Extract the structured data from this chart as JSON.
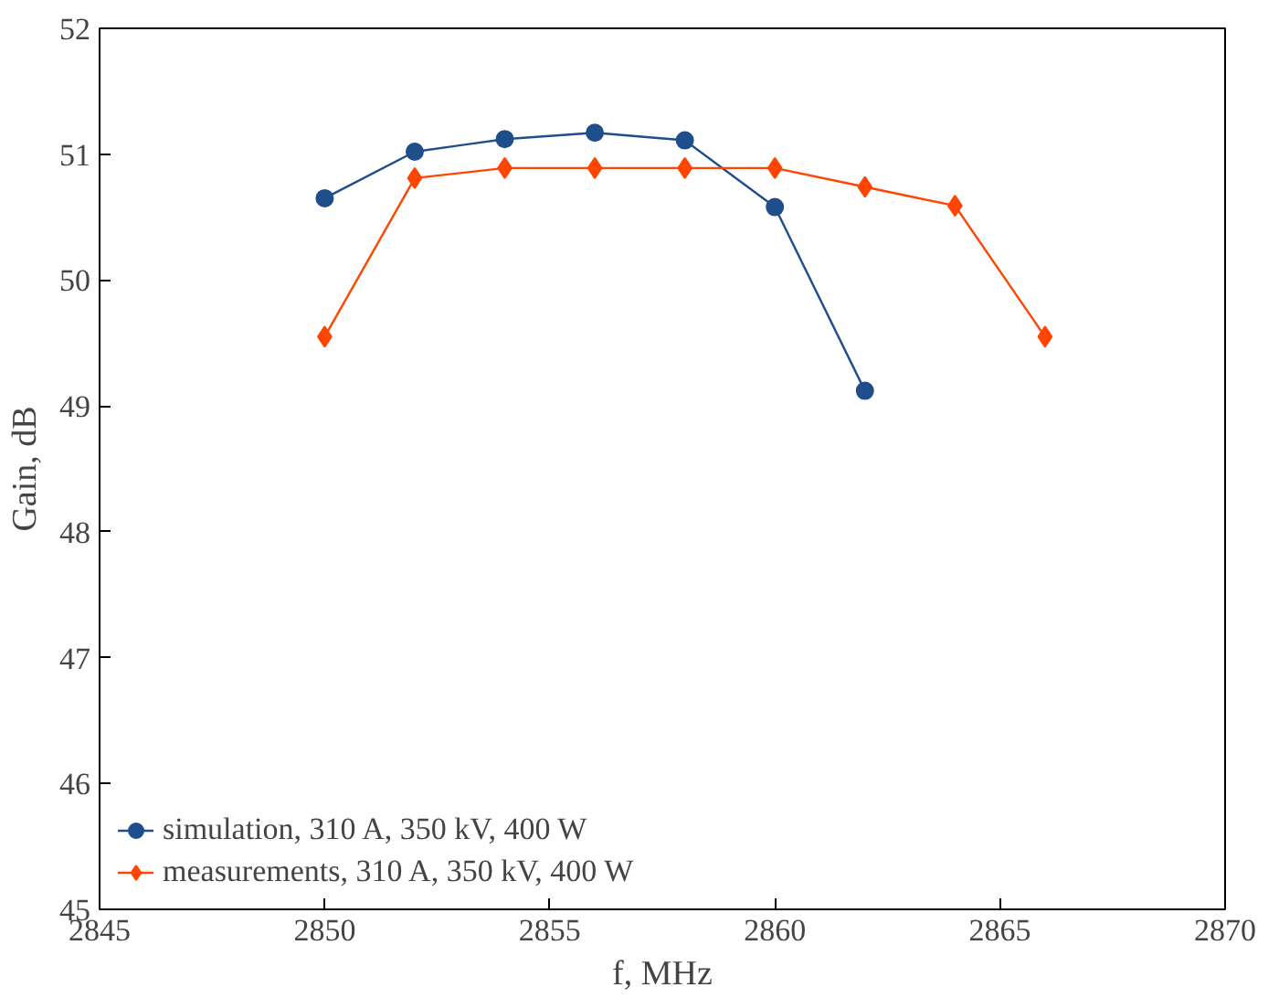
{
  "chart_data": {
    "type": "line",
    "xlabel": "f, MHz",
    "ylabel": "Gain, dB",
    "x": [
      2850,
      2852,
      2854,
      2856,
      2858,
      2860,
      2862,
      2864,
      2866
    ],
    "series": [
      {
        "name": "simulation, 310 A, 350 kV, 400 W",
        "color": "#1f4e8c",
        "marker": "circle",
        "values": [
          50.65,
          51.02,
          51.12,
          51.17,
          51.11,
          50.58,
          49.12,
          null,
          null
        ]
      },
      {
        "name": "measurements, 310 A, 350 kV, 400 W",
        "color": "#ff4500",
        "marker": "diamond",
        "values": [
          49.55,
          50.81,
          50.89,
          50.89,
          50.89,
          50.89,
          50.74,
          50.59,
          49.55
        ]
      }
    ],
    "xlim": [
      2845,
      2870
    ],
    "xticks": [
      2845,
      2850,
      2855,
      2860,
      2865,
      2870
    ],
    "ylim": [
      45,
      52
    ],
    "yticks": [
      45,
      46,
      47,
      48,
      49,
      50,
      51,
      52
    ],
    "grid": false,
    "legend": "bottom left",
    "line_style": "solid"
  }
}
